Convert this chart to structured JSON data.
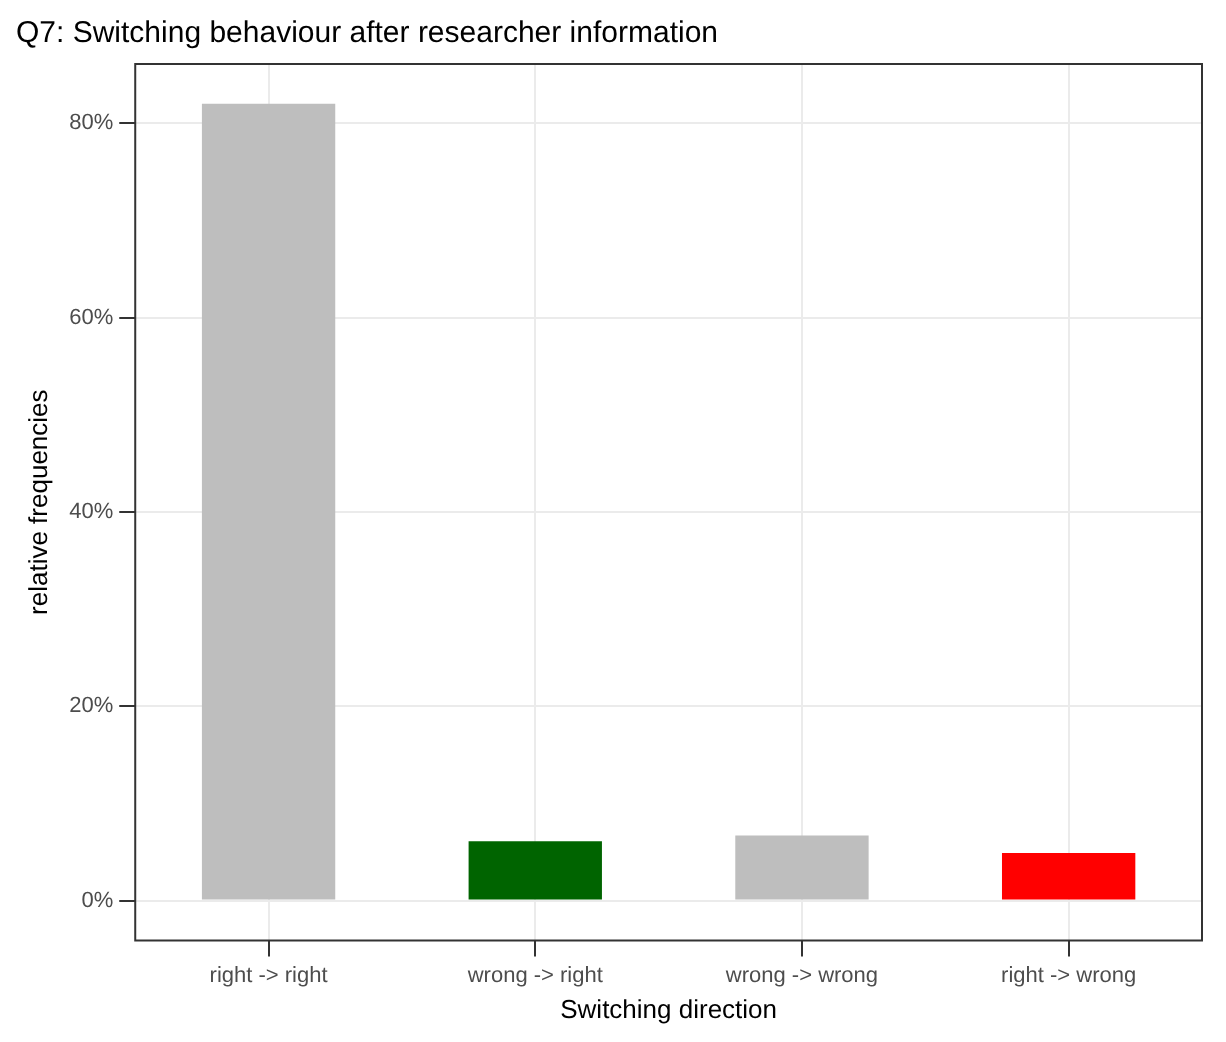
{
  "chart_data": {
    "type": "bar",
    "title": "Q7: Switching behaviour after researcher information",
    "xlabel": "Switching direction",
    "ylabel": "relative frequencies",
    "categories": [
      "right -> right",
      "wrong -> right",
      "wrong -> wrong",
      "right -> wrong"
    ],
    "values": [
      82,
      6.1,
      6.7,
      4.9
    ],
    "colors": [
      "#bebebe",
      "#006400",
      "#bebebe",
      "#ff0000"
    ],
    "ylim": [
      -4.1,
      86.1
    ],
    "yticks": [
      {
        "value": 0,
        "label": "0%"
      },
      {
        "value": 20,
        "label": "20%"
      },
      {
        "value": 40,
        "label": "40%"
      },
      {
        "value": 60,
        "label": "60%"
      },
      {
        "value": 80,
        "label": "80%"
      }
    ],
    "grid": true,
    "legend": false
  }
}
